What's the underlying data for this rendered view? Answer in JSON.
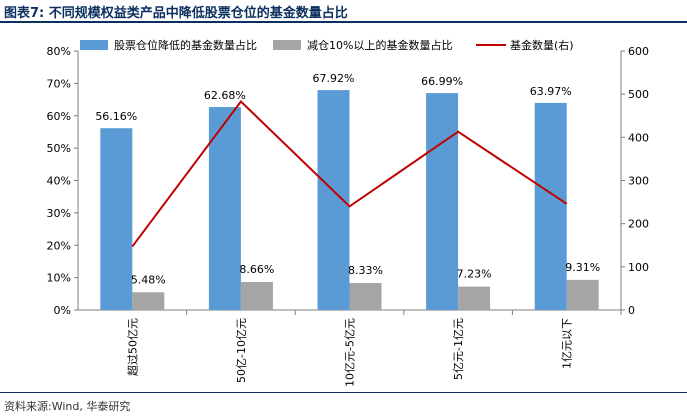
{
  "figure": {
    "title": "图表7:  不同规模权益类产品中降低股票仓位的基金数量占比",
    "source": "资料来源:Wind, 华泰研究"
  },
  "chart_data": {
    "type": "bar",
    "categories": [
      "超过50亿元",
      "50亿-10亿元",
      "10亿元-5亿元",
      "5亿元-1亿元",
      "1亿元以下"
    ],
    "series": [
      {
        "name": "股票仓位降低的基金数量占比",
        "kind": "bar",
        "axis": "left",
        "values": [
          56.16,
          62.68,
          67.92,
          66.99,
          63.97
        ],
        "labels": [
          "56.16%",
          "62.68%",
          "67.92%",
          "66.99%",
          "63.97%"
        ],
        "color": "#5b9bd5"
      },
      {
        "name": "减仓10%以上的基金数量占比",
        "kind": "bar",
        "axis": "left",
        "values": [
          5.48,
          8.66,
          8.33,
          7.23,
          9.31
        ],
        "labels": [
          "5.48%",
          "8.66%",
          "8.33%",
          "7.23%",
          "9.31%"
        ],
        "color": "#a5a5a5"
      },
      {
        "name": "基金数量(右)",
        "kind": "line",
        "axis": "right",
        "values": [
          147,
          483,
          240,
          413,
          246
        ],
        "color": "#c00000"
      }
    ],
    "ylim_left": [
      0,
      80
    ],
    "yticks_left": [
      "0%",
      "10%",
      "20%",
      "30%",
      "40%",
      "50%",
      "60%",
      "70%",
      "80%"
    ],
    "ylim_right": [
      0,
      600
    ],
    "yticks_right": [
      "0",
      "100",
      "200",
      "300",
      "400",
      "500",
      "600"
    ],
    "legend_position": "top",
    "grid": false
  }
}
